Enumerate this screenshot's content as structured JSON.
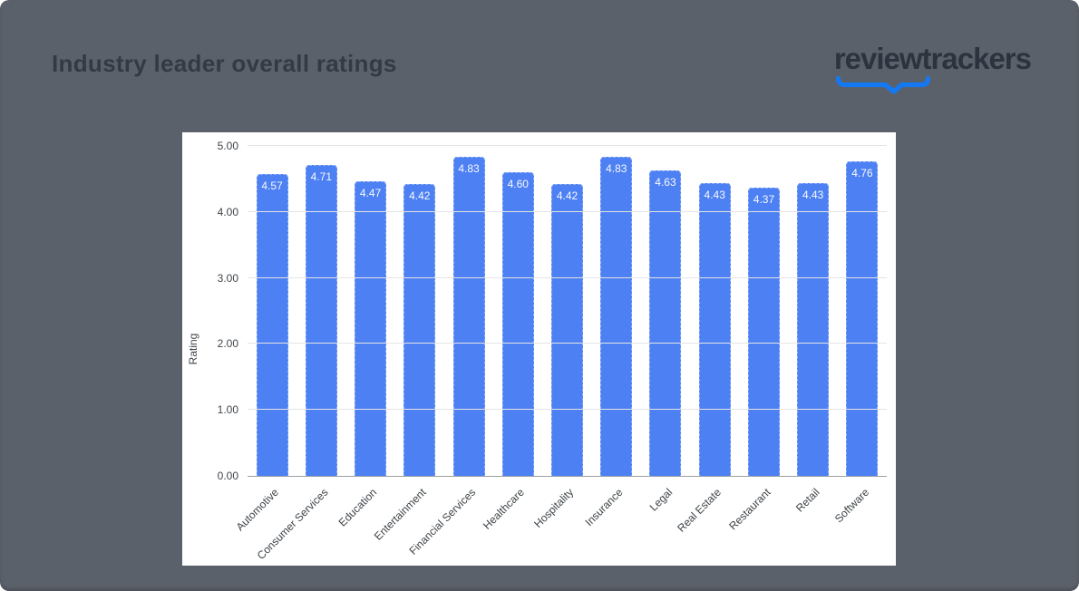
{
  "page": {
    "title": "Industry leader overall ratings"
  },
  "logo": {
    "text": "reviewtrackers",
    "swoosh_icon": "checkmark-swoosh"
  },
  "colors": {
    "background": "#5b616a",
    "title_text": "#343a44",
    "logo_text": "#2c333e",
    "swoosh_blue": "#1478f2",
    "bar_blue": "#4d80f2",
    "gridline": "#e4e4e4",
    "axis_line": "#9aa0a6",
    "axis_text": "#40454b",
    "card_background": "#ffffff"
  },
  "chart_data": {
    "type": "bar",
    "title": "Industry leader overall ratings",
    "categories": [
      "Automotive",
      "Consumer Services",
      "Education",
      "Entertainment",
      "Financial Services",
      "Healthcare",
      "Hospitality",
      "Insurance",
      "Legal",
      "Real Estate",
      "Restaurant",
      "Retail",
      "Software"
    ],
    "values": [
      4.57,
      4.71,
      4.47,
      4.42,
      4.83,
      4.6,
      4.42,
      4.83,
      4.63,
      4.43,
      4.37,
      4.43,
      4.76
    ],
    "value_labels": [
      "4.57",
      "4.71",
      "4.47",
      "4.42",
      "4.83",
      "4.60",
      "4.42",
      "4.83",
      "4.63",
      "4.43",
      "4.37",
      "4.43",
      "4.76"
    ],
    "xlabel": "",
    "ylabel": "Rating",
    "ylim": [
      0,
      5
    ],
    "yticks": [
      "0.00",
      "1.00",
      "2.00",
      "3.00",
      "4.00",
      "5.00"
    ],
    "grid": true,
    "legend": "none",
    "value_labels_position": "inside-top",
    "x_tick_rotation_deg": -45
  }
}
